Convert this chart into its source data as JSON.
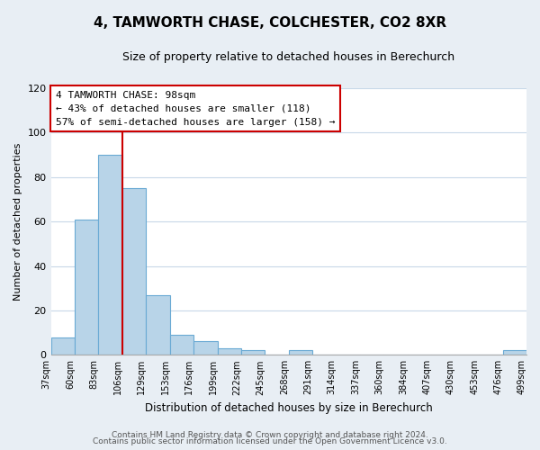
{
  "title": "4, TAMWORTH CHASE, COLCHESTER, CO2 8XR",
  "subtitle": "Size of property relative to detached houses in Berechurch",
  "bar_values": [
    8,
    61,
    90,
    75,
    27,
    9,
    6,
    3,
    2,
    0,
    2,
    0,
    0,
    0,
    0,
    0,
    0,
    0,
    0,
    2
  ],
  "bin_labels": [
    "37sqm",
    "60sqm",
    "83sqm",
    "106sqm",
    "129sqm",
    "153sqm",
    "176sqm",
    "199sqm",
    "222sqm",
    "245sqm",
    "268sqm",
    "291sqm",
    "314sqm",
    "337sqm",
    "360sqm",
    "384sqm",
    "407sqm",
    "430sqm",
    "453sqm",
    "476sqm",
    "499sqm"
  ],
  "bar_color": "#b8d4e8",
  "bar_edge_color": "#6aaad4",
  "vline_x": 3,
  "vline_color": "#cc0000",
  "ylabel": "Number of detached properties",
  "xlabel": "Distribution of detached houses by size in Berechurch",
  "ylim": [
    0,
    120
  ],
  "yticks": [
    0,
    20,
    40,
    60,
    80,
    100,
    120
  ],
  "annotation_title": "4 TAMWORTH CHASE: 98sqm",
  "annotation_line1": "← 43% of detached houses are smaller (118)",
  "annotation_line2": "57% of semi-detached houses are larger (158) →",
  "annotation_box_color": "#ffffff",
  "annotation_box_edge": "#cc0000",
  "footer_line1": "Contains HM Land Registry data © Crown copyright and database right 2024.",
  "footer_line2": "Contains public sector information licensed under the Open Government Licence v3.0.",
  "background_color": "#e8eef4",
  "plot_bg_color": "#ffffff",
  "grid_color": "#c8d8e8"
}
